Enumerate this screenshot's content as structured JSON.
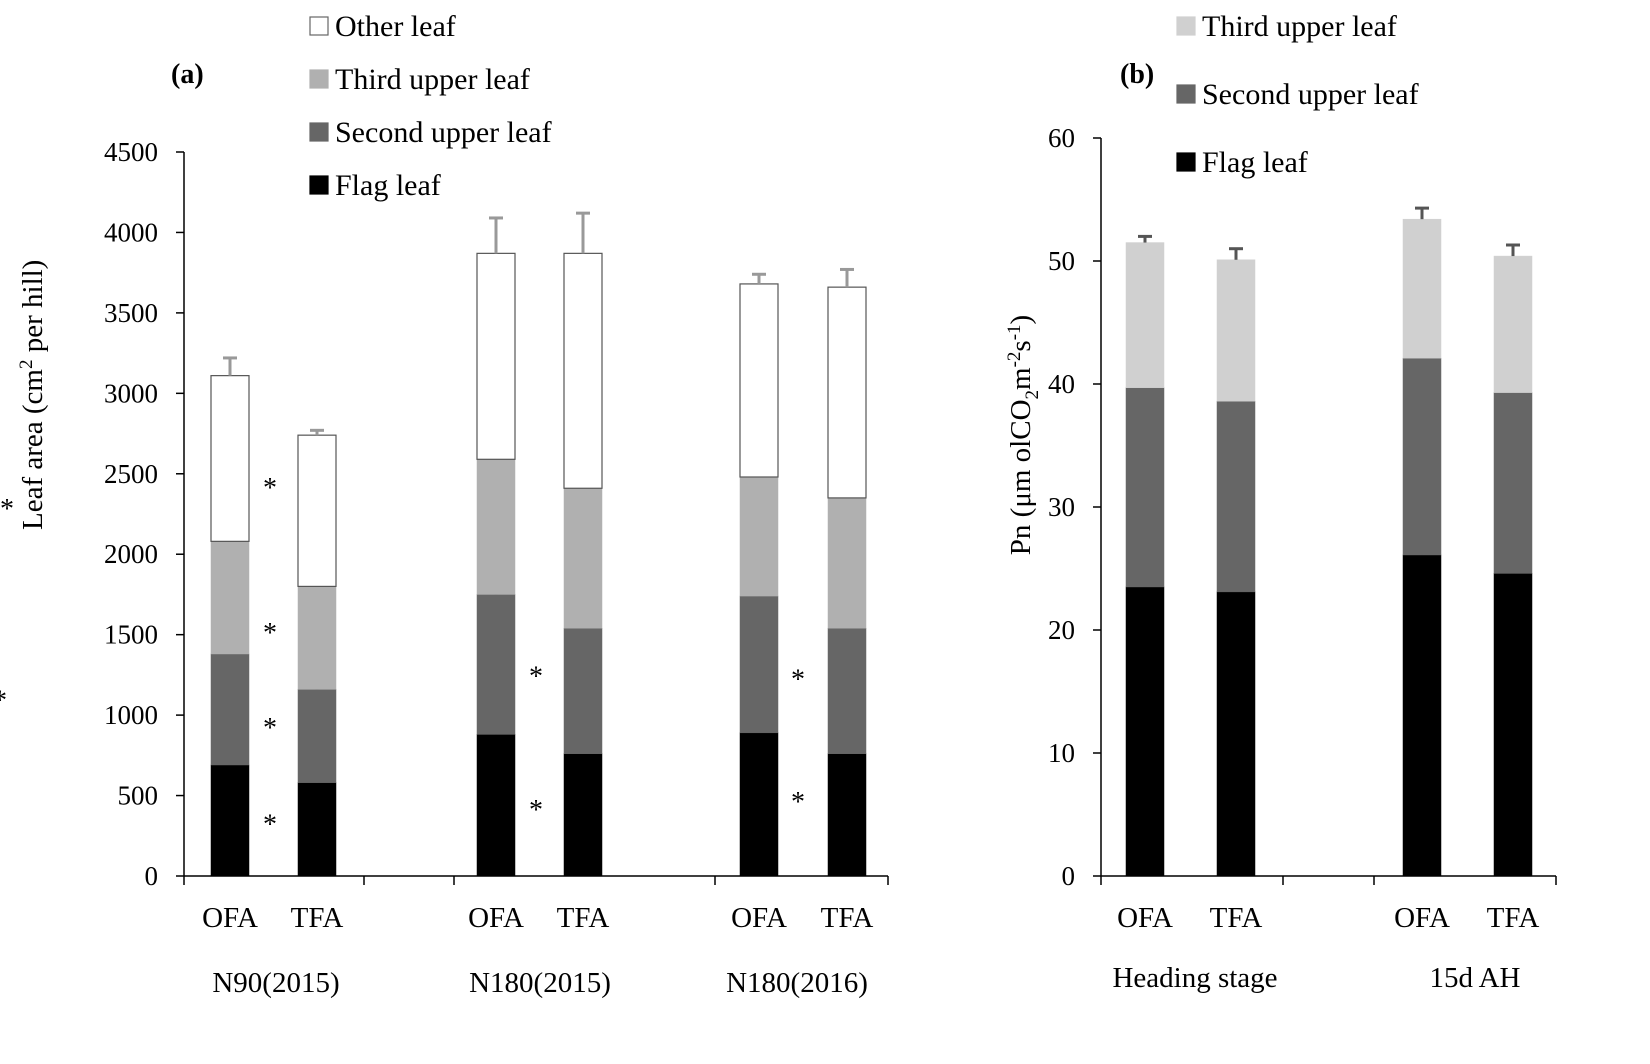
{
  "chart_data": [
    {
      "type": "bar",
      "stacked": true,
      "panel_label": "(a)",
      "ylabel": "Leaf area (cm² per hill)",
      "ylabel_main": "Leaf area (cm",
      "ylabel_sup": "2",
      "ylabel_end": " per hill)",
      "ylim": [
        0,
        4500
      ],
      "yticks": [
        0,
        500,
        1000,
        1500,
        2000,
        2500,
        3000,
        3500,
        4000,
        4500
      ],
      "groups": [
        {
          "name": "N90(2015)",
          "categories": [
            "OFA",
            "TFA"
          ]
        },
        {
          "name": "N180(2015)",
          "categories": [
            "OFA",
            "TFA"
          ]
        },
        {
          "name": "N180(2016)",
          "categories": [
            "OFA",
            "TFA"
          ]
        }
      ],
      "categories": [
        "OFA",
        "TFA",
        "OFA",
        "TFA",
        "OFA",
        "TFA"
      ],
      "series": [
        {
          "name": "Flag leaf",
          "color": "#000000",
          "values": [
            690,
            580,
            880,
            760,
            890,
            760
          ],
          "errors": [
            30,
            60,
            60,
            60,
            20,
            20
          ]
        },
        {
          "name": "Second upper leaf",
          "color": "#666666",
          "values": [
            690,
            580,
            870,
            780,
            850,
            780
          ],
          "errors": [
            0,
            50,
            50,
            80,
            30,
            10
          ]
        },
        {
          "name": "Third upper leaf",
          "color": "#b0b0b0",
          "values": [
            700,
            640,
            840,
            870,
            740,
            810
          ],
          "errors": [
            40,
            60,
            90,
            110,
            30,
            10
          ]
        },
        {
          "name": "Other leaf",
          "color": "#ffffff",
          "values": [
            1030,
            940,
            1280,
            1460,
            1200,
            1310
          ],
          "errors": [
            110,
            30,
            220,
            250,
            60,
            110
          ]
        }
      ],
      "legend_order": [
        "Other leaf",
        "Third upper leaf",
        "Second upper leaf",
        "Flag leaf"
      ],
      "annotations": [
        {
          "text": "*",
          "group": 0,
          "y": 2430
        },
        {
          "text": "*",
          "group": 0,
          "y": 1530
        },
        {
          "text": "*",
          "group": 0,
          "y": 940
        },
        {
          "text": "*",
          "group": 0,
          "y": 340
        },
        {
          "text": "*",
          "group": 1,
          "y": 1260
        },
        {
          "text": "*",
          "group": 1,
          "y": 430
        },
        {
          "text": "*",
          "group": 2,
          "y": 1240
        },
        {
          "text": "*",
          "group": 2,
          "y": 480
        }
      ]
    },
    {
      "type": "bar",
      "stacked": true,
      "panel_label": "(b)",
      "ylabel": "Pn (μmol CO₂ m⁻² s⁻¹)",
      "ylabel_main": "Pn (μm olCO",
      "ylabel_sub": "2",
      "ylabel_mid": "m",
      "ylabel_sup1": "-2",
      "ylabel_mid2": "s",
      "ylabel_sup2": "-1",
      "ylabel_end": ")",
      "ylim": [
        0,
        60
      ],
      "yticks": [
        0,
        10,
        20,
        30,
        40,
        50,
        60
      ],
      "groups": [
        {
          "name": "Heading stage",
          "categories": [
            "OFA",
            "TFA"
          ]
        },
        {
          "name": "15d AH",
          "categories": [
            "OFA",
            "TFA"
          ]
        }
      ],
      "categories": [
        "OFA",
        "TFA",
        "OFA",
        "TFA"
      ],
      "series": [
        {
          "name": "Flag leaf",
          "color": "#000000",
          "values": [
            23.5,
            23.1,
            26.1,
            24.6
          ],
          "errors": [
            0.5,
            0.7,
            0.7,
            0.9
          ]
        },
        {
          "name": "Second upper leaf",
          "color": "#666666",
          "values": [
            16.2,
            15.5,
            16.0,
            14.7
          ],
          "errors": [
            0.9,
            0.8,
            0.7,
            1.0
          ]
        },
        {
          "name": "Third upper leaf",
          "color": "#d0d0d0",
          "values": [
            11.8,
            11.5,
            11.3,
            11.1
          ],
          "errors": [
            0.5,
            0.9,
            0.9,
            0.9
          ]
        }
      ],
      "legend_order": [
        "Third upper leaf",
        "Second upper leaf",
        "Flag leaf"
      ],
      "annotations": [
        {
          "text": "**",
          "group": 1,
          "y": 30.1
        },
        {
          "text": "*",
          "group": 1,
          "y": 14.5
        }
      ]
    }
  ]
}
